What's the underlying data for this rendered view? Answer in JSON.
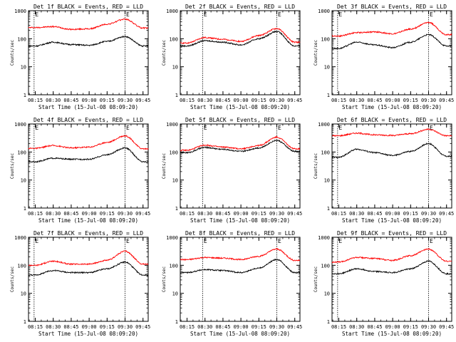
{
  "figure": {
    "ylabel": "Counts/sec",
    "xlabel": "Start Time (15-Jul-08 08:09:20)",
    "x_tick_labels": [
      "08:15",
      "08:30",
      "08:45",
      "09:00",
      "09:15",
      "09:30",
      "09:45"
    ],
    "y_tick_labels": [
      "1",
      "10",
      "100",
      "1000"
    ],
    "marker_labels": [
      "E",
      "E"
    ],
    "colors": {
      "events": "#000000",
      "lld": "#ff0000",
      "background": "#ffffff"
    }
  },
  "chart_data": [
    {
      "type": "line",
      "title": "Det 1f BLACK = Events, RED = LLD",
      "x": [
        "08:15",
        "08:30",
        "08:45",
        "09:00",
        "09:15",
        "09:30",
        "09:45"
      ],
      "xlim": [
        "08:09:20",
        "09:49:20"
      ],
      "ylim": [
        1,
        1000
      ],
      "yscale": "log",
      "markers_x": [
        "08:14:00",
        "09:30:00"
      ],
      "series": [
        {
          "color": "#ff0000",
          "values": [
            250,
            270,
            215,
            225,
            330,
            500,
            240
          ]
        },
        {
          "color": "#000000",
          "values": [
            55,
            75,
            62,
            58,
            80,
            120,
            55
          ]
        }
      ]
    },
    {
      "type": "line",
      "title": "Det 2f BLACK = Events, RED = LLD",
      "x": [
        "08:15",
        "08:30",
        "08:45",
        "09:00",
        "09:15",
        "09:30",
        "09:45"
      ],
      "xlim": [
        "08:09:20",
        "09:49:20"
      ],
      "ylim": [
        1,
        1000
      ],
      "yscale": "log",
      "markers_x": [
        "08:28:00",
        "09:30:00"
      ],
      "series": [
        {
          "color": "#ff0000",
          "values": [
            70,
            110,
            95,
            80,
            130,
            230,
            75
          ]
        },
        {
          "color": "#000000",
          "values": [
            55,
            85,
            75,
            60,
            100,
            180,
            55
          ]
        }
      ]
    },
    {
      "type": "line",
      "title": "Det 3f BLACK = Events, RED = LLD",
      "x": [
        "08:15",
        "08:30",
        "08:45",
        "09:00",
        "09:15",
        "09:30",
        "09:45"
      ],
      "xlim": [
        "08:09:20",
        "09:49:20"
      ],
      "ylim": [
        1,
        1000
      ],
      "yscale": "log",
      "markers_x": [
        "08:14:00",
        "09:30:00"
      ],
      "series": [
        {
          "color": "#ff0000",
          "values": [
            125,
            165,
            175,
            150,
            220,
            380,
            140
          ]
        },
        {
          "color": "#000000",
          "values": [
            45,
            75,
            60,
            48,
            75,
            140,
            55
          ]
        }
      ]
    },
    {
      "type": "line",
      "title": "Det 4f BLACK = Events, RED = LLD",
      "x": [
        "08:15",
        "08:30",
        "08:45",
        "09:00",
        "09:15",
        "09:30",
        "09:45"
      ],
      "xlim": [
        "08:09:20",
        "09:49:20"
      ],
      "ylim": [
        1,
        1000
      ],
      "yscale": "log",
      "markers_x": [
        "08:14:00",
        "09:30:00"
      ],
      "series": [
        {
          "color": "#ff0000",
          "values": [
            135,
            170,
            140,
            150,
            220,
            380,
            130
          ]
        },
        {
          "color": "#000000",
          "values": [
            45,
            60,
            55,
            55,
            80,
            140,
            45
          ]
        }
      ]
    },
    {
      "type": "line",
      "title": "Det 5f BLACK = Events, RED = LLD",
      "x": [
        "08:15",
        "08:30",
        "08:45",
        "09:00",
        "09:15",
        "09:30",
        "09:45"
      ],
      "xlim": [
        "08:09:20",
        "09:49:20"
      ],
      "ylim": [
        1,
        1000
      ],
      "yscale": "log",
      "markers_x": [
        "08:28:00",
        "09:30:00"
      ],
      "series": [
        {
          "color": "#ff0000",
          "values": [
            115,
            175,
            150,
            130,
            170,
            340,
            130
          ]
        },
        {
          "color": "#000000",
          "values": [
            95,
            145,
            125,
            105,
            140,
            260,
            105
          ]
        }
      ]
    },
    {
      "type": "line",
      "title": "Det 6f BLACK = Events, RED = LLD",
      "x": [
        "08:15",
        "08:30",
        "08:45",
        "09:00",
        "09:15",
        "09:30",
        "09:45"
      ],
      "xlim": [
        "08:09:20",
        "09:49:20"
      ],
      "ylim": [
        1,
        1000
      ],
      "yscale": "log",
      "markers_x": [
        "08:14:00",
        "09:30:00"
      ],
      "series": [
        {
          "color": "#ff0000",
          "values": [
            380,
            470,
            410,
            390,
            450,
            650,
            380
          ]
        },
        {
          "color": "#000000",
          "values": [
            65,
            125,
            95,
            75,
            105,
            200,
            70
          ]
        }
      ]
    },
    {
      "type": "line",
      "title": "Det 7f BLACK = Events, RED = LLD",
      "x": [
        "08:15",
        "08:30",
        "08:45",
        "09:00",
        "09:15",
        "09:30",
        "09:45"
      ],
      "xlim": [
        "08:09:20",
        "09:49:20"
      ],
      "ylim": [
        1,
        1000
      ],
      "yscale": "log",
      "markers_x": [
        "08:14:00",
        "09:30:00"
      ],
      "series": [
        {
          "color": "#ff0000",
          "values": [
            100,
            140,
            110,
            110,
            150,
            320,
            110
          ]
        },
        {
          "color": "#000000",
          "values": [
            45,
            65,
            55,
            55,
            75,
            130,
            45
          ]
        }
      ]
    },
    {
      "type": "line",
      "title": "Det 8f BLACK = Events, RED = LLD",
      "x": [
        "08:15",
        "08:30",
        "08:45",
        "09:00",
        "09:15",
        "09:30",
        "09:45"
      ],
      "xlim": [
        "08:09:20",
        "09:49:20"
      ],
      "ylim": [
        1,
        1000
      ],
      "yscale": "log",
      "markers_x": [
        "08:28:00",
        "09:30:00"
      ],
      "series": [
        {
          "color": "#ff0000",
          "values": [
            160,
            190,
            180,
            160,
            210,
            380,
            150
          ]
        },
        {
          "color": "#000000",
          "values": [
            55,
            70,
            65,
            55,
            80,
            160,
            55
          ]
        }
      ]
    },
    {
      "type": "line",
      "title": "Det 9f BLACK = Events, RED = LLD",
      "x": [
        "08:15",
        "08:30",
        "08:45",
        "09:00",
        "09:15",
        "09:30",
        "09:45"
      ],
      "xlim": [
        "08:09:20",
        "09:49:20"
      ],
      "ylim": [
        1,
        1000
      ],
      "yscale": "log",
      "markers_x": [
        "08:14:00",
        "09:30:00"
      ],
      "series": [
        {
          "color": "#ff0000",
          "values": [
            130,
            190,
            175,
            150,
            220,
            380,
            140
          ]
        },
        {
          "color": "#000000",
          "values": [
            50,
            75,
            60,
            55,
            75,
            140,
            50
          ]
        }
      ]
    }
  ]
}
